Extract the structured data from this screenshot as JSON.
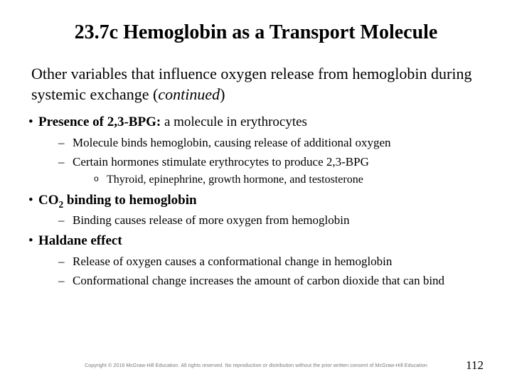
{
  "title": "23.7c Hemoglobin as a Transport Molecule",
  "intro_a": "Other variables that influence oxygen release from hemoglobin during systemic exchange (",
  "intro_b": "continued",
  "intro_c": ")",
  "b1_lead": "Presence of 2,3-BPG:",
  "b1_rest": " a molecule in erythrocytes",
  "b1_s1": "Molecule binds hemoglobin, causing release of additional oxygen",
  "b1_s2": "Certain hormones stimulate erythrocytes to produce 2,3-BPG",
  "b1_s2_s1": "Thyroid, epinephrine, growth hormone, and testosterone",
  "b2_lead_a": "CO",
  "b2_lead_sub": "2",
  "b2_lead_b": " binding to hemoglobin",
  "b2_s1": "Binding causes release of more oxygen from hemoglobin",
  "b3_lead": "Haldane effect",
  "b3_s1": "Release of oxygen causes a conformational change in hemoglobin",
  "b3_s2": "Conformational change increases the amount of carbon dioxide that can bind",
  "copyright": "Copyright © 2016 McGraw-Hill Education. All rights reserved. No reproduction or distribution without the prior written consent of McGraw-Hill Education",
  "pagenum": "112"
}
